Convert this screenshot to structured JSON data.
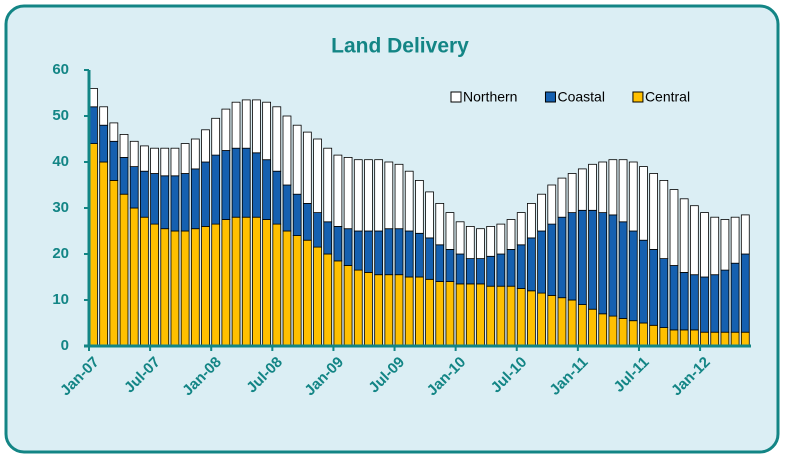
{
  "chart_data": {
    "type": "stacked_bar",
    "title": "Land Delivery",
    "categories": [
      "Jan-07",
      null,
      null,
      null,
      null,
      null,
      "Jul-07",
      null,
      null,
      null,
      null,
      null,
      "Jan-08",
      null,
      null,
      null,
      null,
      null,
      "Jul-08",
      null,
      null,
      null,
      null,
      null,
      "Jan-09",
      null,
      null,
      null,
      null,
      null,
      "Jul-09",
      null,
      null,
      null,
      null,
      null,
      "Jan-10",
      null,
      null,
      null,
      null,
      null,
      "Jul-10",
      null,
      null,
      null,
      null,
      null,
      "Jan-11",
      null,
      null,
      null,
      null,
      null,
      "Jul-11",
      null,
      null,
      null,
      null,
      null,
      "Jan-12",
      null,
      null,
      null,
      null
    ],
    "series": [
      {
        "name": "Central",
        "color": "#ffc000",
        "values": [
          44,
          40,
          36,
          33,
          30,
          28,
          26.5,
          25.5,
          25,
          25,
          25.5,
          26,
          26.5,
          27.5,
          28,
          28,
          28,
          27.5,
          26.5,
          25,
          24,
          23,
          21.5,
          20,
          18.5,
          17.5,
          16.5,
          16,
          15.5,
          15.5,
          15.5,
          15,
          15,
          14.5,
          14,
          14,
          13.5,
          13.5,
          13.5,
          13,
          13,
          13,
          12.5,
          12,
          11.5,
          11,
          10.5,
          10,
          9,
          8,
          7,
          6.5,
          6,
          5.5,
          5,
          4.5,
          4,
          3.5,
          3.5,
          3.5,
          3,
          3,
          3,
          3,
          3
        ]
      },
      {
        "name": "Coastal",
        "color": "#1560b0",
        "values": [
          8,
          8,
          8.5,
          8,
          9,
          10,
          11,
          11.5,
          12,
          12.5,
          13,
          14,
          15,
          15,
          15,
          15,
          14,
          13,
          11.5,
          10,
          9,
          8,
          7.5,
          7,
          7.5,
          8,
          8.5,
          9,
          9.5,
          10,
          10,
          10,
          9.5,
          9,
          8,
          7,
          6.5,
          5.5,
          5.5,
          6.5,
          7,
          8,
          9.5,
          11.5,
          13.5,
          15.5,
          17.5,
          19,
          20.5,
          21.5,
          22,
          22,
          21,
          19.5,
          18,
          16.5,
          15,
          14,
          12.5,
          12,
          12,
          12.5,
          13.5,
          15,
          17
        ]
      },
      {
        "name": "Northern",
        "color": "#ffffff",
        "values": [
          4,
          4,
          4,
          5,
          5.5,
          5.5,
          5.5,
          6,
          6,
          6.5,
          6.5,
          7,
          8,
          9,
          10,
          10.5,
          11.5,
          12.5,
          14,
          15,
          15,
          15.5,
          16,
          16,
          15.5,
          15.5,
          15.5,
          15.5,
          15.5,
          14.5,
          14,
          13,
          11.5,
          10,
          9,
          8,
          7,
          7,
          6.5,
          6.5,
          6.5,
          6.5,
          7,
          7.5,
          8,
          8.5,
          8.5,
          8.5,
          9,
          10,
          11,
          12,
          13.5,
          15,
          16,
          16.5,
          17,
          16.5,
          16,
          15,
          14,
          12.5,
          11,
          10,
          8.5
        ]
      }
    ],
    "ylim": [
      0,
      60
    ],
    "yticks": [
      0,
      10,
      20,
      30,
      40,
      50,
      60
    ],
    "legend": "top-right"
  }
}
